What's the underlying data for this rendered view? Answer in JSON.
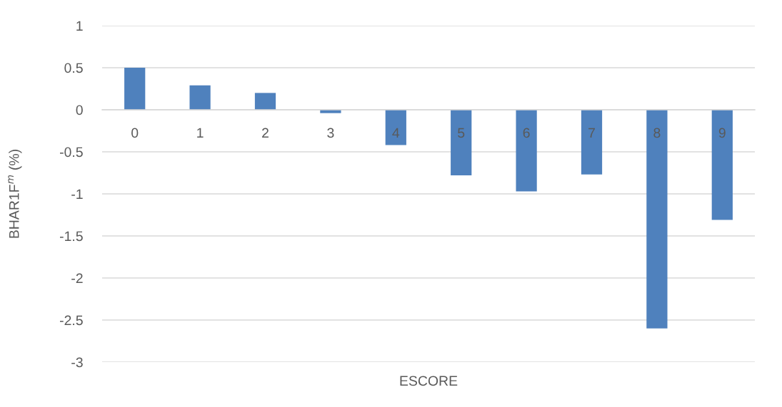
{
  "chart_data": {
    "type": "bar",
    "xlabel": "ESCORE",
    "ylabel": "BHAR1F$^{m}$ (%)",
    "categories": [
      "0",
      "1",
      "2",
      "3",
      "4",
      "5",
      "6",
      "7",
      "8",
      "9"
    ],
    "values": [
      0.5,
      0.29,
      0.2,
      -0.04,
      -0.42,
      -0.78,
      -0.97,
      -0.77,
      -2.6,
      -1.31
    ],
    "color": "#4f81bd",
    "ylim": [
      -3,
      1
    ],
    "yticks": [
      -3,
      -2.5,
      -2,
      -1.5,
      -1,
      -0.5,
      0,
      0.5,
      1
    ],
    "grid": "y"
  }
}
